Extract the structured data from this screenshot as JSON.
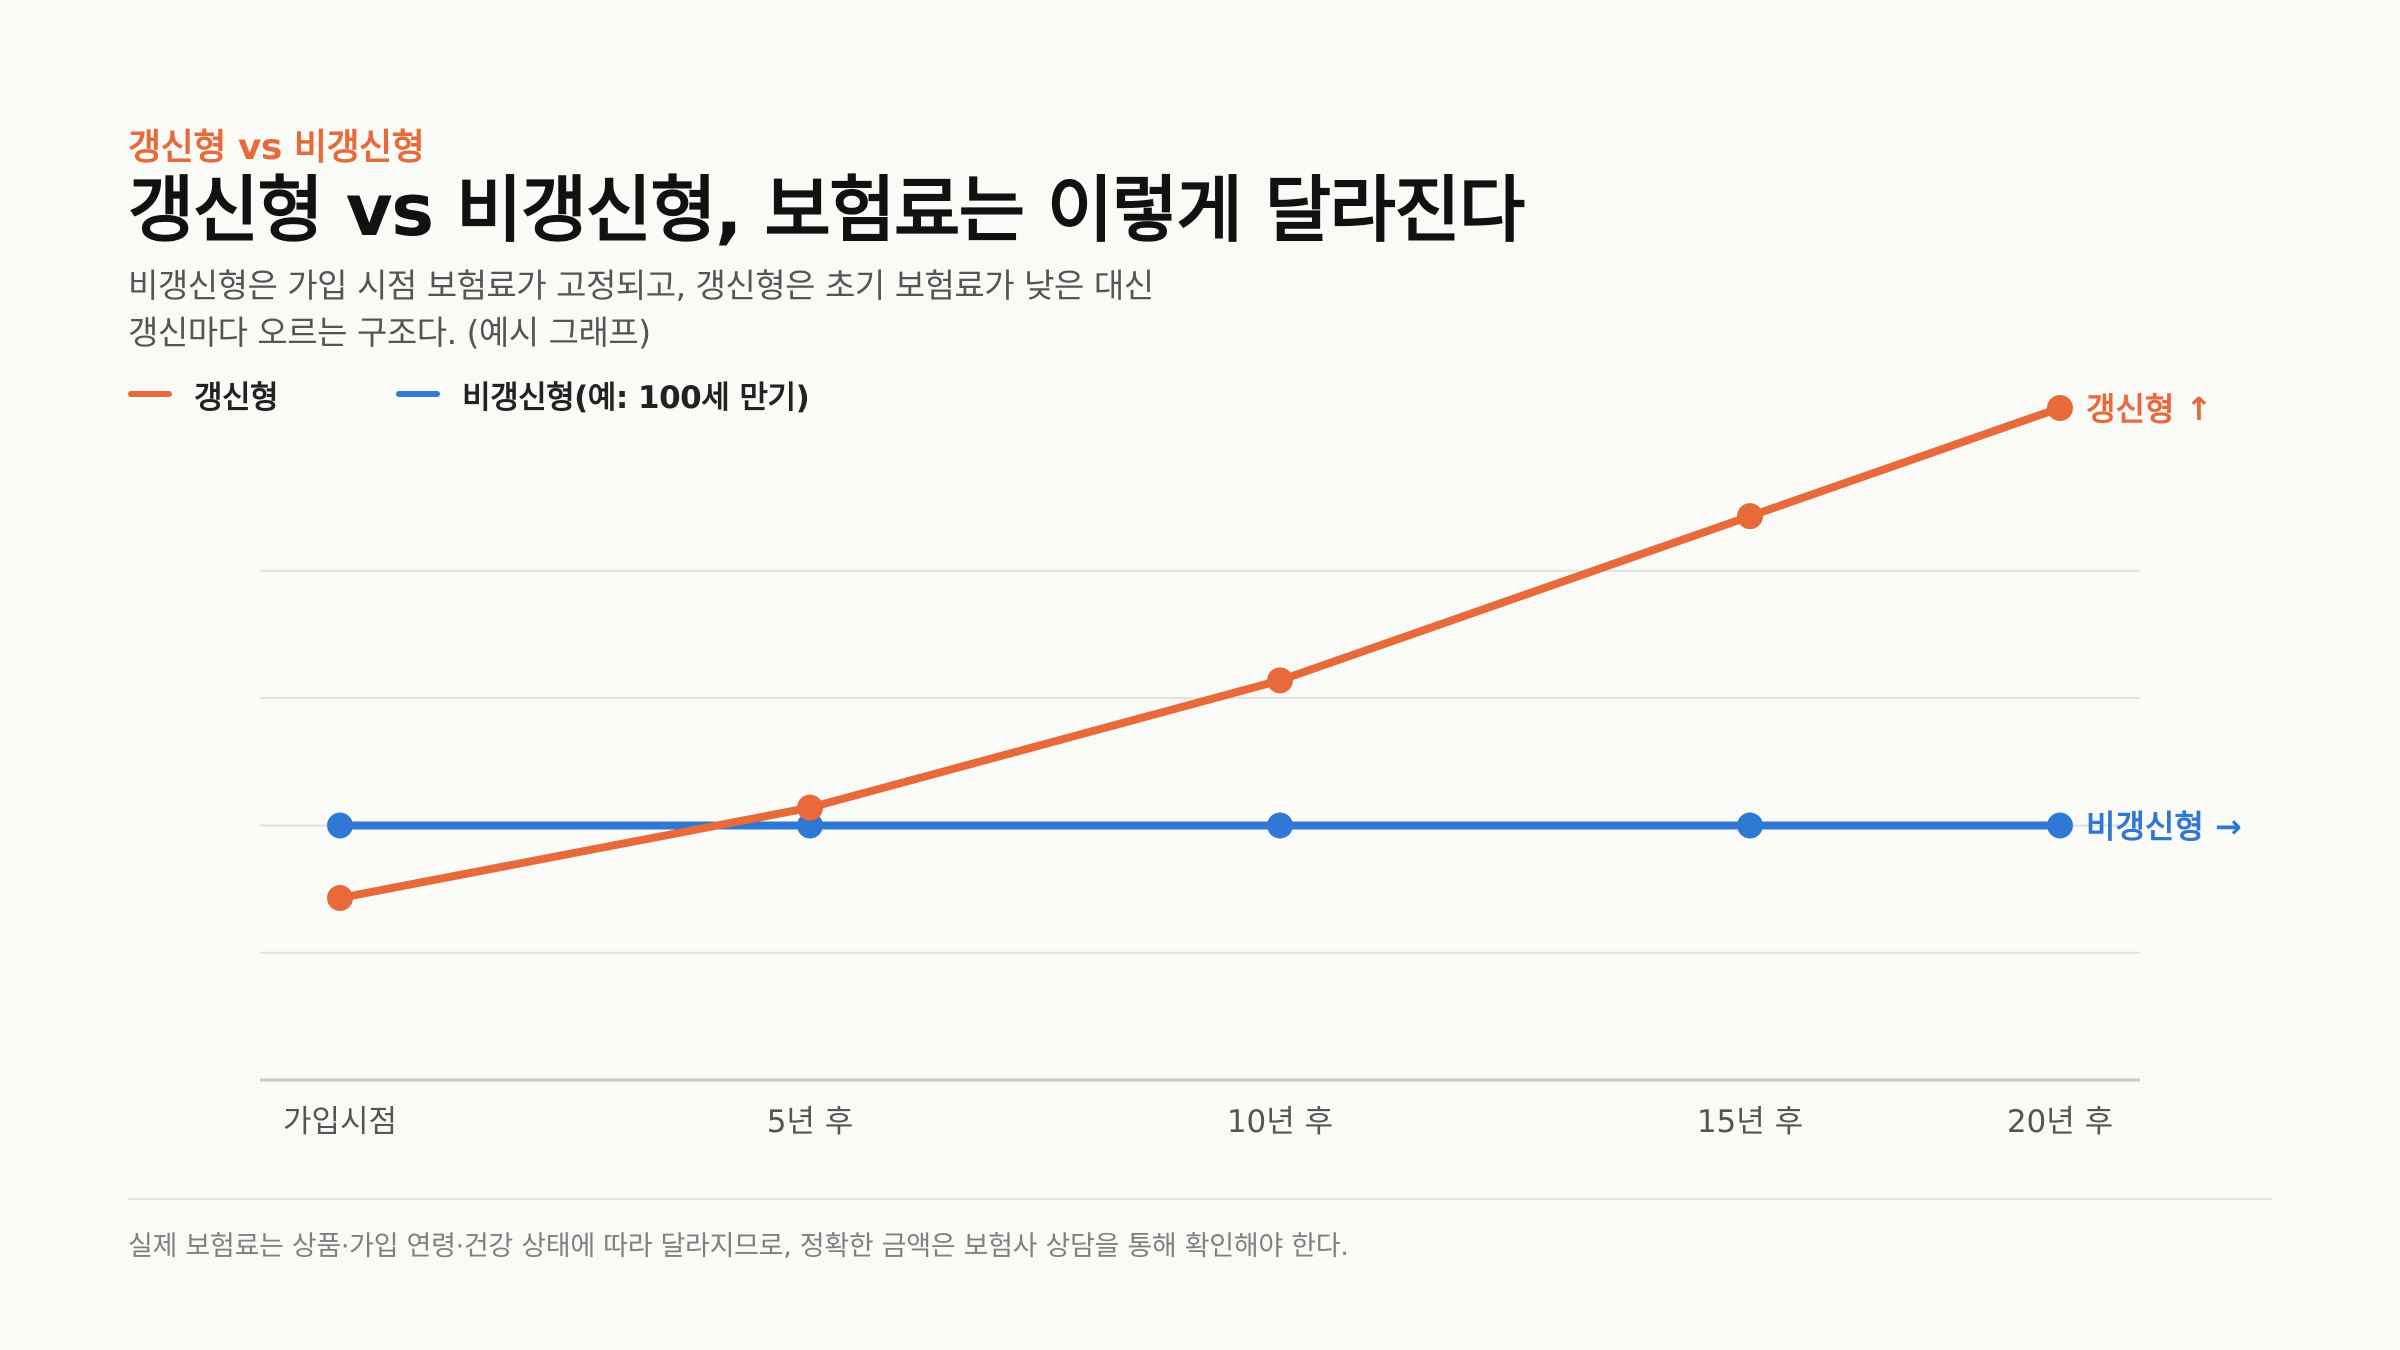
{
  "header": {
    "eyebrow": "갱신형 vs 비갱신형",
    "title": "갱신형 vs 비갱신형, 보험료는 이렇게 달라진다",
    "subtitle_lines": [
      "비갱신형은 가입 시점 보험료가 고정되고, 갱신형은 초기 보험료가 낮은 대신",
      "갱신마다 오르는 구조다. (예시 그래프)"
    ]
  },
  "legend": [
    {
      "label": "갱신형",
      "color": "#e8693a"
    },
    {
      "label": "비갱신형(예: 100세 만기)",
      "color": "#2f78d4"
    }
  ],
  "chart_data": {
    "type": "line",
    "categories": [
      "가입시점",
      "5년 후",
      "10년 후",
      "15년 후",
      "20년 후"
    ],
    "x": [
      0,
      5,
      10,
      15,
      20
    ],
    "series": [
      {
        "name": "갱신형",
        "color": "#e8693a",
        "values": [
          0.43,
          1.14,
          2.14,
          3.43,
          4.28
        ],
        "end_label": "갱신형 ↑"
      },
      {
        "name": "비갱신형(예: 100세 만기)",
        "color": "#2f78d4",
        "values": [
          1.0,
          1.0,
          1.0,
          1.0,
          1.0
        ],
        "end_label": "비갱신형 →"
      }
    ],
    "ylim": [
      -1,
      4.5
    ],
    "grid": true,
    "y_ticks_labeled": false,
    "legend_position": "top-left",
    "xlabel": "",
    "ylabel": ""
  },
  "footnote": "실제 보험료는 상품·가입 연령·건강 상태에 따라 달라지므로, 정확한 금액은 보험사 상담을 통해 확인해야 한다."
}
